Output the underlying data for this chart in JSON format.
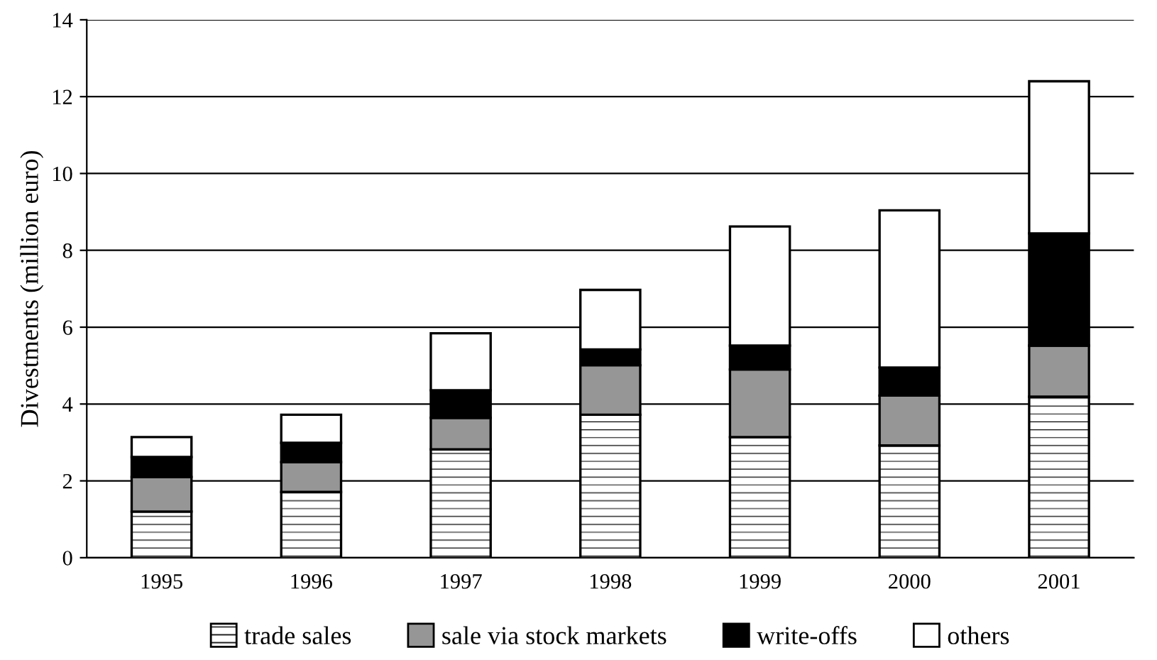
{
  "chart_data": {
    "type": "bar",
    "stacked": true,
    "ylabel": "Divestments (million euro)",
    "categories": [
      "1995",
      "1996",
      "1997",
      "1998",
      "1999",
      "2000",
      "2001"
    ],
    "series": [
      {
        "name": "trade sales",
        "color": "#000000",
        "values": [
          1.2,
          1.71,
          2.82,
          3.72,
          3.14,
          2.92,
          4.19
        ]
      },
      {
        "name": "sale via stock markets",
        "color": "#969696",
        "values": [
          0.9,
          0.78,
          0.82,
          1.29,
          1.76,
          1.3,
          1.33
        ]
      },
      {
        "name": "write-offs",
        "color": "#000000",
        "values": [
          0.52,
          0.5,
          0.72,
          0.41,
          0.62,
          0.73,
          2.92
        ]
      },
      {
        "name": "others",
        "color": "#ffffff",
        "values": [
          0.52,
          0.73,
          1.48,
          1.55,
          3.1,
          4.09,
          3.96
        ]
      }
    ],
    "ylim": [
      0,
      14
    ],
    "yticks": [
      0,
      2,
      4,
      6,
      8,
      10,
      12,
      14
    ],
    "grid": "y",
    "legend": "bottom"
  }
}
